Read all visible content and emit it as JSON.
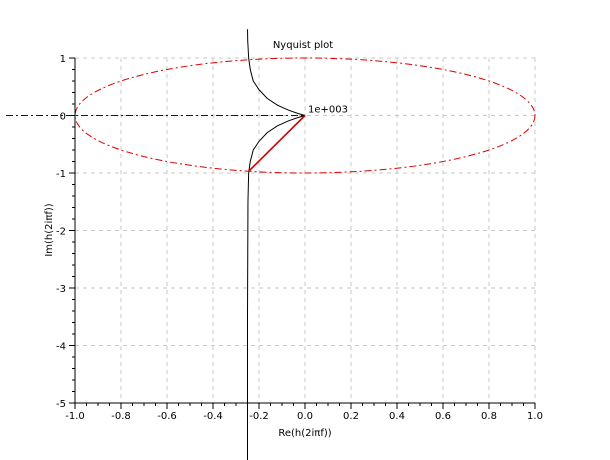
{
  "chart_data": {
    "type": "line",
    "title": "Nyquist plot",
    "xlabel": "Re(h(2iπf))",
    "ylabel": "Im(h(2iπf))",
    "xlim": [
      -1.0,
      1.0
    ],
    "ylim": [
      -5,
      1
    ],
    "x_ticks": [
      -1.0,
      -0.8,
      -0.6,
      -0.4,
      -0.2,
      0.0,
      0.2,
      0.4,
      0.6,
      0.8,
      1.0
    ],
    "x_tick_labels": [
      "-1.0",
      "-0.8",
      "-0.6",
      "-0.4",
      "-0.2",
      "0.0",
      "0.2",
      "0.4",
      "0.6",
      "0.8",
      "1.0"
    ],
    "y_ticks": [
      1,
      0,
      -1,
      -2,
      -3,
      -4,
      -5
    ],
    "y_tick_labels": [
      "1",
      "0",
      "-1",
      "-2",
      "-3",
      "-4",
      "-5"
    ],
    "grid": true,
    "annotations": [
      {
        "text": "1e+003",
        "x": 0.0,
        "y": 0.0
      }
    ],
    "series": [
      {
        "style": "solid",
        "color": "#000000",
        "points": [
          [
            -0.25,
            1.5
          ],
          [
            -0.249,
            1.3
          ],
          [
            -0.245,
            1.0
          ],
          [
            -0.238,
            0.8
          ],
          [
            -0.225,
            0.6
          ],
          [
            -0.2,
            0.45
          ],
          [
            -0.165,
            0.3
          ],
          [
            -0.12,
            0.18
          ],
          [
            -0.07,
            0.09
          ],
          [
            -0.03,
            0.035
          ],
          [
            0.0,
            0.0
          ]
        ]
      },
      {
        "style": "solid",
        "color": "#000000",
        "points": [
          [
            0.0,
            0.0
          ],
          [
            -0.03,
            -0.035
          ],
          [
            -0.07,
            -0.09
          ],
          [
            -0.12,
            -0.18
          ],
          [
            -0.165,
            -0.3
          ],
          [
            -0.2,
            -0.45
          ],
          [
            -0.225,
            -0.6
          ],
          [
            -0.238,
            -0.8
          ],
          [
            -0.245,
            -1.0
          ],
          [
            -0.248,
            -1.5
          ],
          [
            -0.249,
            -2.5
          ],
          [
            -0.25,
            -3.5
          ],
          [
            -0.25,
            -4.5
          ],
          [
            -0.25,
            -5.0
          ],
          [
            -0.25,
            -6.0
          ]
        ]
      },
      {
        "style": "solid",
        "color": "#cc0000",
        "points": [
          [
            0.0,
            0.0
          ],
          [
            -0.245,
            -0.97
          ]
        ]
      },
      {
        "style": "dash-dot",
        "color": "#0000cc",
        "points": [
          [
            -1.3,
            0.0
          ],
          [
            0.0,
            0.0
          ]
        ]
      },
      {
        "style": "dash-dot",
        "color": "#dd0000",
        "shape": "ellipse",
        "center": [
          0.0,
          0.0
        ],
        "radii": [
          1.0,
          1.0
        ]
      }
    ]
  }
}
